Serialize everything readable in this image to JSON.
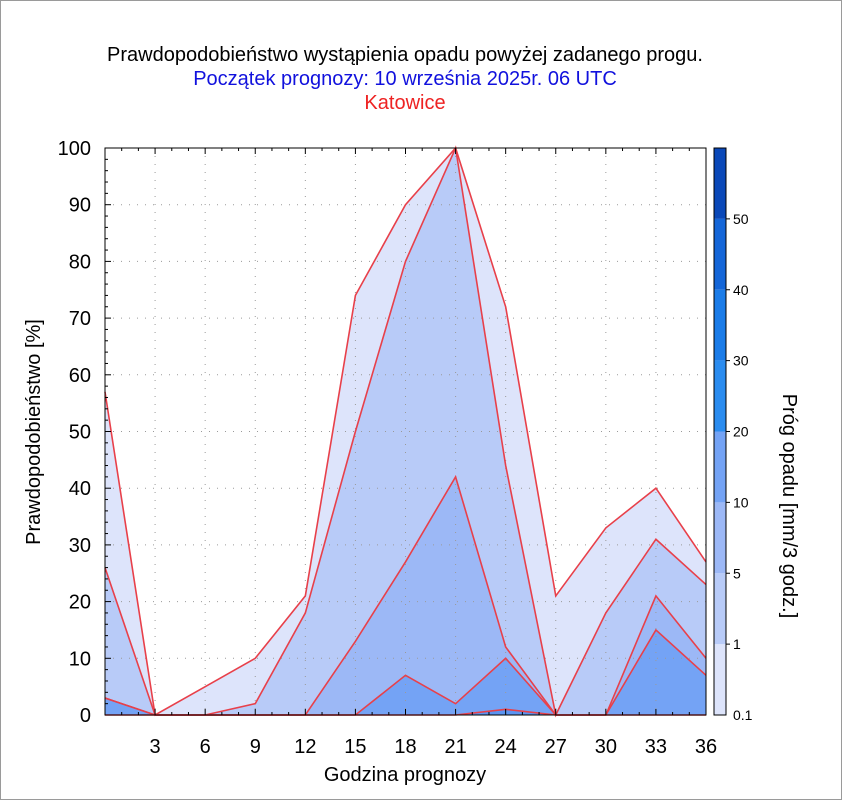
{
  "chart_data": {
    "type": "area",
    "title": "Prawdopodobieństwo wystąpienia opadu powyżej zadanego progu.",
    "subtitle": "Początek prognozy: 10 września 2025r. 06 UTC",
    "location": "Katowice",
    "xlabel": "Godzina prognozy",
    "ylabel": "Prawdopodobieństwo [%]",
    "colorbar_label": "Próg opadu [mm/3 godz.]",
    "x": [
      0,
      3,
      6,
      9,
      12,
      15,
      18,
      21,
      24,
      27,
      30,
      33,
      36
    ],
    "x_tick_labels": [
      "3",
      "6",
      "9",
      "12",
      "15",
      "18",
      "21",
      "24",
      "27",
      "30",
      "33",
      "36"
    ],
    "x_ticks": [
      3,
      6,
      9,
      12,
      15,
      18,
      21,
      24,
      27,
      30,
      33,
      36
    ],
    "xlim": [
      0,
      36
    ],
    "ylim": [
      0,
      100
    ],
    "y_ticks": [
      0,
      10,
      20,
      30,
      40,
      50,
      60,
      70,
      80,
      90,
      100
    ],
    "grid": true,
    "line_color": "#e8404a",
    "series": [
      {
        "name": "0.1",
        "color": "#dde4fb",
        "values": [
          57,
          0,
          5,
          10,
          21,
          74,
          90,
          100,
          72,
          21,
          33,
          40,
          27
        ]
      },
      {
        "name": "1",
        "color": "#b8cbf8",
        "values": [
          26,
          0,
          0,
          2,
          18,
          50,
          80,
          100,
          44,
          0,
          18,
          31,
          23
        ]
      },
      {
        "name": "5",
        "color": "#9cb8f6",
        "values": [
          3,
          0,
          0,
          0,
          0,
          13,
          27,
          42,
          12,
          0,
          0,
          21,
          10
        ]
      },
      {
        "name": "10",
        "color": "#74a3f5",
        "values": [
          3,
          0,
          0,
          0,
          0,
          0,
          7,
          2,
          10,
          0,
          0,
          15,
          7
        ]
      },
      {
        "name": "20",
        "color": "#5a94f2",
        "values": [
          0,
          0,
          0,
          0,
          0,
          0,
          0,
          0,
          1,
          0,
          0,
          0,
          0
        ]
      }
    ],
    "colorbar": {
      "labels": [
        "0.1",
        "1",
        "5",
        "10",
        "20",
        "30",
        "40",
        "50"
      ],
      "positions": [
        0,
        12.5,
        25,
        37.5,
        50,
        62.5,
        75,
        87.5
      ],
      "max": 100,
      "bands": [
        {
          "from": 0,
          "to": 12.5,
          "color": "#dde4fb"
        },
        {
          "from": 12.5,
          "to": 25,
          "color": "#b8cbf8"
        },
        {
          "from": 25,
          "to": 37.5,
          "color": "#9cb8f6"
        },
        {
          "from": 37.5,
          "to": 50,
          "color": "#74a3f5"
        },
        {
          "from": 50,
          "to": 62.5,
          "color": "#2b8cef"
        },
        {
          "from": 62.5,
          "to": 75,
          "color": "#1b7ce8"
        },
        {
          "from": 75,
          "to": 87.5,
          "color": "#1466d8"
        },
        {
          "from": 87.5,
          "to": 100,
          "color": "#0a48b8"
        }
      ]
    }
  }
}
